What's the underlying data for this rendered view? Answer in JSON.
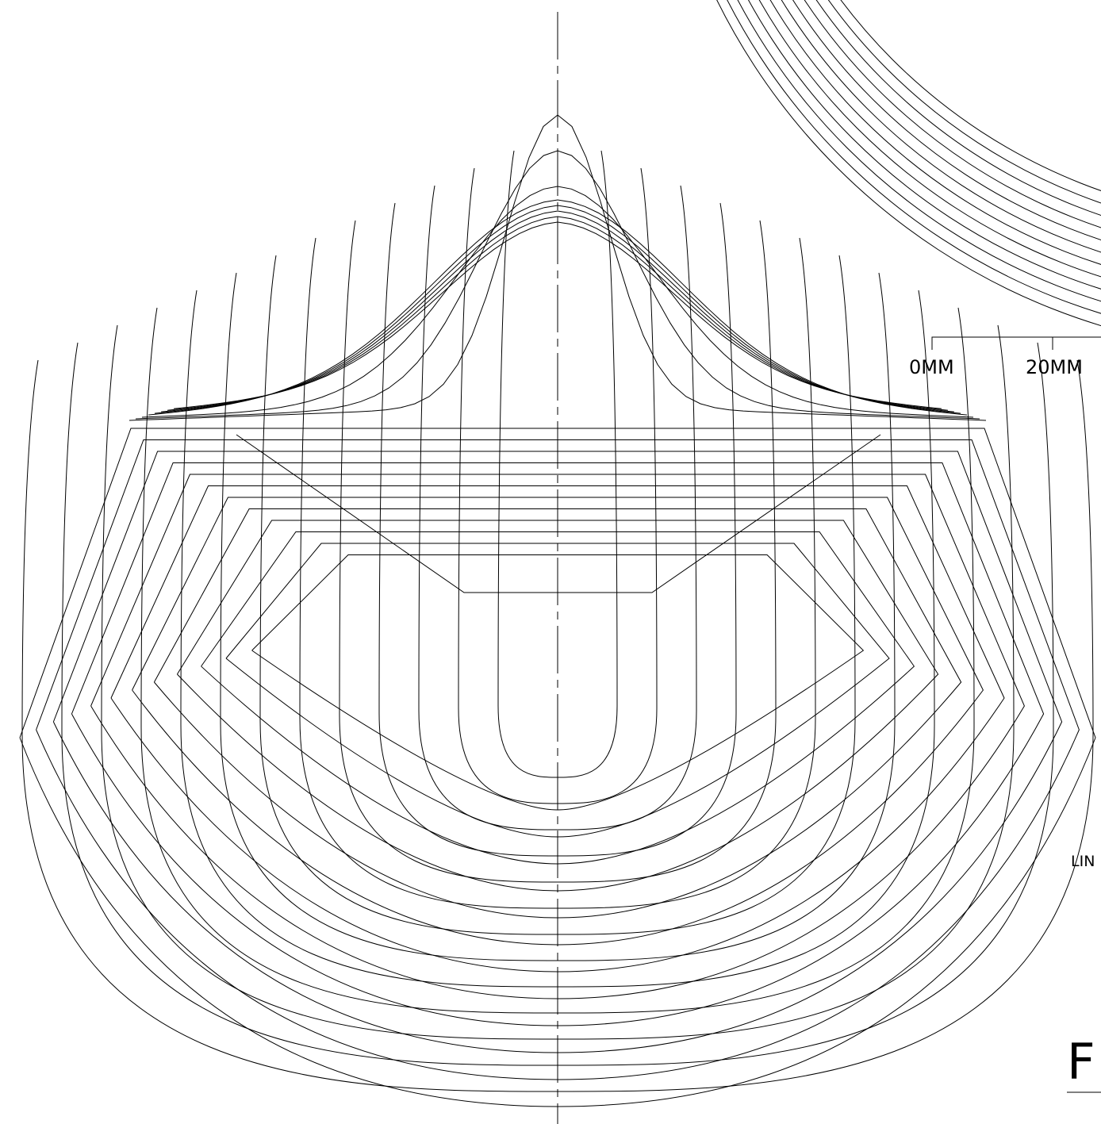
{
  "scale_bar": {
    "labels": [
      "0MM",
      "20MM"
    ]
  },
  "side_text": "LIN",
  "title_fragment": "F"
}
